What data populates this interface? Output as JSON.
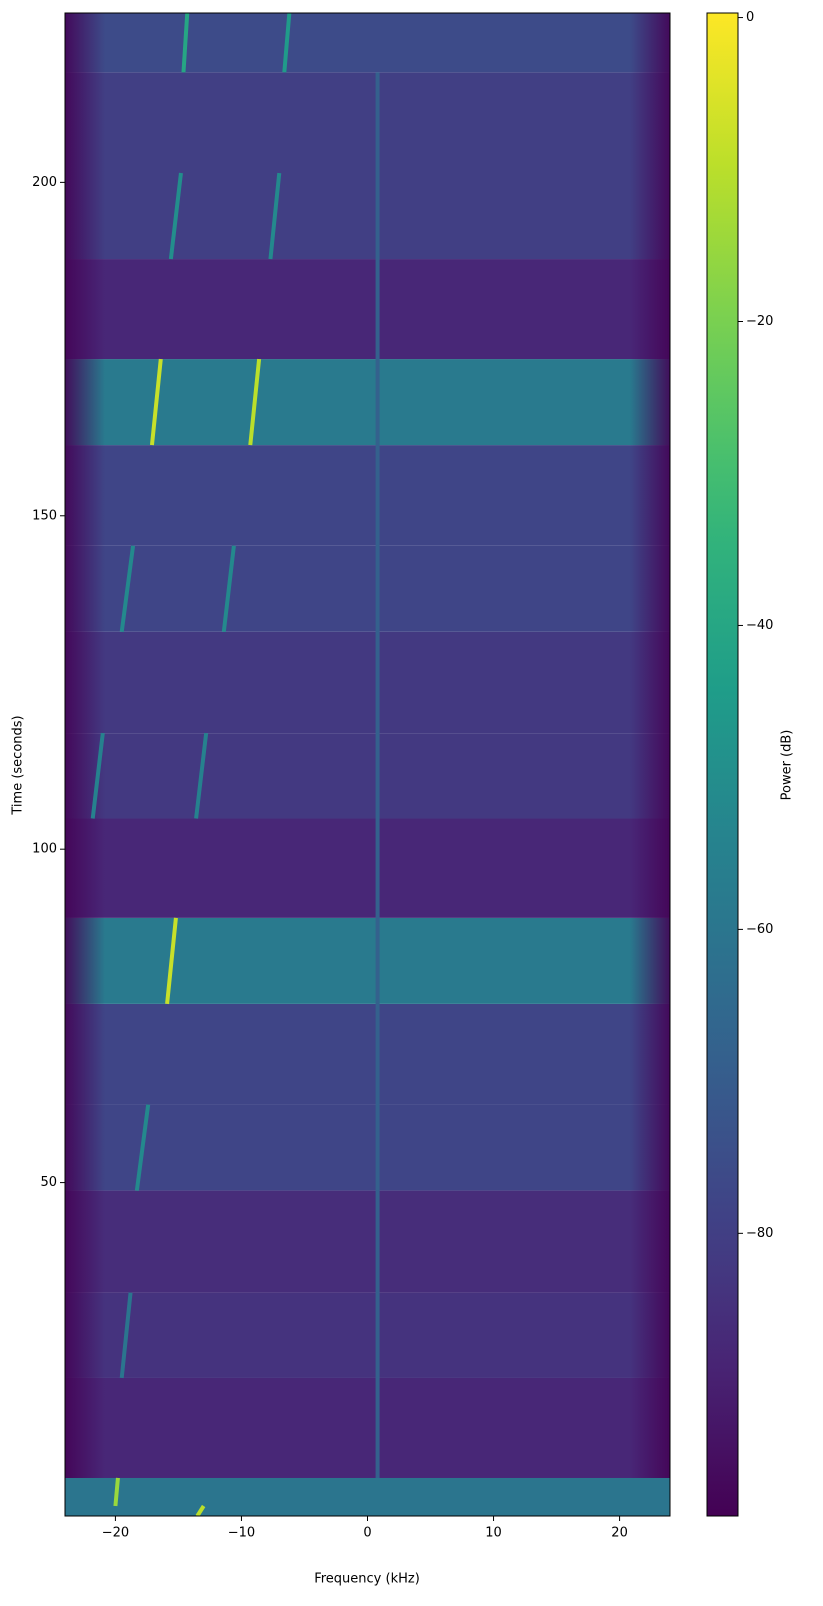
{
  "chart_data": {
    "type": "spectrogram",
    "xlabel": "Frequency (kHz)",
    "ylabel": "Time (seconds)",
    "colorbar_label": "Power (dB)",
    "xlim": [
      -24,
      24
    ],
    "xticks": [
      {
        "value": -20,
        "label": "−20"
      },
      {
        "value": -10,
        "label": "−10"
      },
      0,
      10,
      20
    ],
    "ylim": [
      0,
      225.4
    ],
    "yticks": [
      50,
      100,
      150,
      200
    ],
    "clim": [
      -98.6,
      0.3
    ],
    "cticks": [
      0,
      {
        "value": -20,
        "label": "−20"
      },
      {
        "value": -40,
        "label": "−40"
      },
      {
        "value": -60,
        "label": "−60"
      },
      {
        "value": -80,
        "label": "−80"
      }
    ],
    "colormap": "viridis",
    "y_edges": [
      0,
      5.7,
      20.7,
      33.5,
      48.8,
      61.7,
      76.8,
      89.7,
      104.6,
      117.4,
      132.6,
      145.5,
      160.6,
      173.5,
      188.5,
      216.5,
      225.4
    ],
    "band_power": [
      -60,
      -88,
      -84,
      -86,
      -78,
      -78,
      -58,
      -88,
      -82,
      -82,
      -78,
      -78,
      -58,
      -88,
      -80,
      -76
    ],
    "edge_power": -98,
    "tones": [
      {
        "f0": -14.6,
        "t0": 216.5,
        "f1": -14.3,
        "t1": 225.4,
        "power": -40
      },
      {
        "f0": -6.6,
        "t0": 216.5,
        "f1": -6.2,
        "t1": 225.4,
        "power": -45
      },
      {
        "f0": -15.6,
        "t0": 188.5,
        "f1": -14.8,
        "t1": 201.4,
        "power": -50
      },
      {
        "f0": -7.7,
        "t0": 188.5,
        "f1": -7.0,
        "t1": 201.4,
        "power": -52
      },
      {
        "f0": -17.1,
        "t0": 160.6,
        "f1": -16.4,
        "t1": 173.5,
        "power": -8
      },
      {
        "f0": -9.3,
        "t0": 160.6,
        "f1": -8.6,
        "t1": 173.5,
        "power": -10
      },
      {
        "f0": -19.5,
        "t0": 132.6,
        "f1": -18.6,
        "t1": 145.5,
        "power": -52
      },
      {
        "f0": -11.4,
        "t0": 132.6,
        "f1": -10.6,
        "t1": 145.5,
        "power": -52
      },
      {
        "f0": -21.8,
        "t0": 104.6,
        "f1": -21.0,
        "t1": 117.4,
        "power": -55
      },
      {
        "f0": -13.6,
        "t0": 104.6,
        "f1": -12.8,
        "t1": 117.4,
        "power": -55
      },
      {
        "f0": -15.9,
        "t0": 76.8,
        "f1": -15.2,
        "t1": 89.7,
        "power": -8
      },
      {
        "f0": -18.3,
        "t0": 48.8,
        "f1": -17.4,
        "t1": 61.7,
        "power": -52
      },
      {
        "f0": -19.5,
        "t0": 20.7,
        "f1": -18.8,
        "t1": 33.5,
        "power": -60
      },
      {
        "f0": -20.0,
        "t0": 1.5,
        "f1": -19.8,
        "t1": 5.7,
        "power": -15
      },
      {
        "f0": -13.5,
        "t0": 0,
        "f1": -13.0,
        "t1": 1.5,
        "power": -10
      },
      {
        "f0": 0.8,
        "t0": 5.7,
        "f1": 0.8,
        "t1": 216.5,
        "power": -68
      }
    ]
  }
}
